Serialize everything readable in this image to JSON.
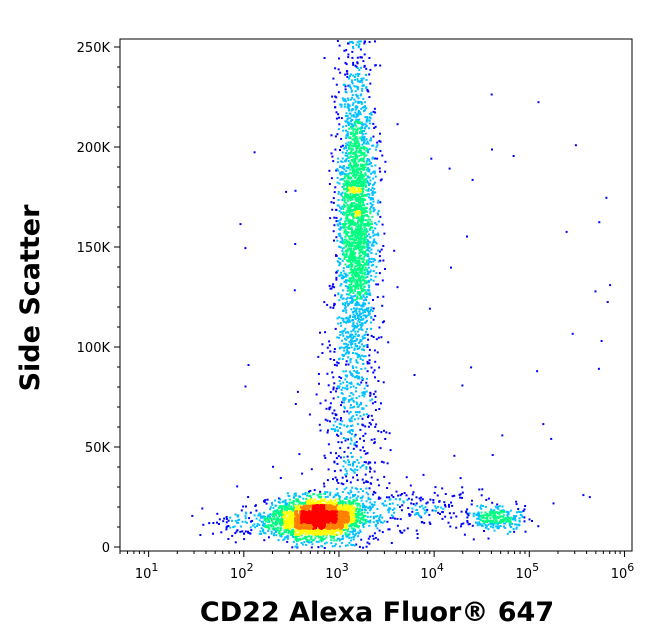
{
  "chart_data": {
    "type": "scatter",
    "plot_style": "flow-cytometry density dot plot",
    "xlabel": "CD22 Alexa Fluor® 647",
    "ylabel": "Side Scatter",
    "x_scale": "log",
    "xlim": [
      5,
      1200000
    ],
    "ylim": [
      -2000,
      254000
    ],
    "x_ticks": [
      {
        "value": 10,
        "base": "10",
        "exp": "1"
      },
      {
        "value": 100,
        "base": "10",
        "exp": "2"
      },
      {
        "value": 1000,
        "base": "10",
        "exp": "3"
      },
      {
        "value": 10000,
        "base": "10",
        "exp": "4"
      },
      {
        "value": 100000,
        "base": "10",
        "exp": "5"
      },
      {
        "value": 1000000,
        "base": "10",
        "exp": "6"
      }
    ],
    "y_ticks": [
      {
        "value": 0,
        "label": "0"
      },
      {
        "value": 50000,
        "label": "50K"
      },
      {
        "value": 100000,
        "label": "100K"
      },
      {
        "value": 150000,
        "label": "150K"
      },
      {
        "value": 200000,
        "label": "200K"
      },
      {
        "value": 250000,
        "label": "250K"
      }
    ],
    "density_colors": [
      "#0000ff",
      "#00c0ff",
      "#00ff80",
      "#ffff00",
      "#ff8000",
      "#ff0000"
    ],
    "populations": [
      {
        "name": "low-SSC main cluster",
        "x_center": 600,
        "x_log_sd": 0.22,
        "y_center": 15000,
        "y_sd": 5000,
        "points": 2600
      },
      {
        "name": "high-SSC granulocyte band",
        "x_center": 1500,
        "x_log_sd": 0.1,
        "y_center": 165000,
        "y_sd": 38000,
        "points": 2400
      },
      {
        "name": "bridge events",
        "x_center": 1300,
        "x_log_sd": 0.15,
        "y_center": 60000,
        "y_sd": 30000,
        "points": 450
      },
      {
        "name": "CD22-positive cluster",
        "x_center": 45000,
        "x_log_sd": 0.15,
        "y_center": 15000,
        "y_sd": 3000,
        "points": 260
      },
      {
        "name": "intermediate trail",
        "x_center": 4000,
        "x_log_sd": 0.45,
        "y_center": 20000,
        "y_sd": 6000,
        "points": 260
      },
      {
        "name": "left tail",
        "x_center": 150,
        "x_log_sd": 0.3,
        "y_center": 13000,
        "y_sd": 4000,
        "points": 200
      }
    ]
  }
}
